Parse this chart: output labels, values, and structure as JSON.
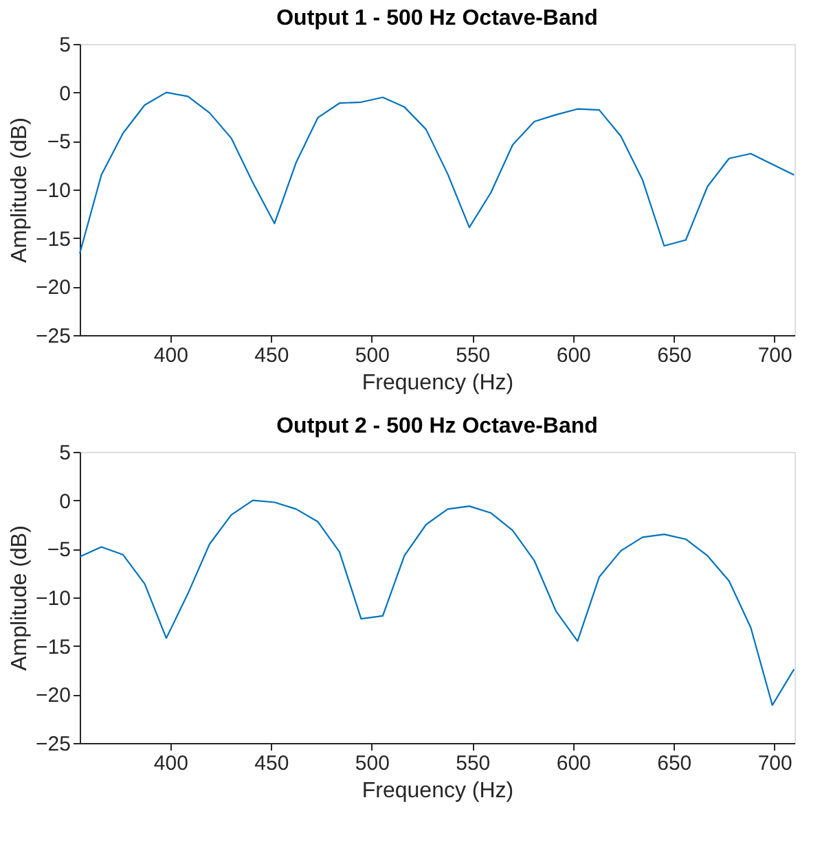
{
  "chart_data": [
    {
      "type": "line",
      "title": "Output 1 - 500 Hz Octave-Band",
      "xlabel": "Frequency (Hz)",
      "ylabel": "Amplitude (dB)",
      "xlim": [
        355,
        710
      ],
      "xticks": [
        400,
        450,
        500,
        550,
        600,
        650,
        700
      ],
      "ylim": [
        -25,
        5
      ],
      "yticks": [
        -25,
        -20,
        -15,
        -10,
        -5,
        0,
        5
      ],
      "x": [
        355,
        365.75,
        376.5,
        387.25,
        398,
        408.75,
        419.5,
        430.25,
        441,
        451.75,
        462.5,
        473.25,
        484,
        494.75,
        505.5,
        516.25,
        527,
        537.75,
        548.5,
        559.25,
        570,
        580.75,
        591.5,
        602.25,
        613,
        623.75,
        634.5,
        645.25,
        656,
        666.75,
        677.5,
        688.25,
        699,
        709.75
      ],
      "series": [
        {
          "color": "#0072bd",
          "values": [
            -16.6,
            -8.5,
            -4.2,
            -1.3,
            0,
            -0.4,
            -2.1,
            -4.7,
            -9.3,
            -13.5,
            -7.2,
            -2.6,
            -1.1,
            -1.0,
            -0.5,
            -1.5,
            -3.8,
            -8.4,
            -13.9,
            -10.3,
            -5.4,
            -3.0,
            -2.3,
            -1.7,
            -1.8,
            -4.5,
            -9.0,
            -15.8,
            -15.2,
            -9.7,
            -6.8,
            -6.3,
            -7.4,
            -8.5
          ]
        }
      ]
    },
    {
      "type": "line",
      "title": "Output 2 - 500 Hz Octave-Band",
      "xlabel": "Frequency (Hz)",
      "ylabel": "Amplitude (dB)",
      "xlim": [
        355,
        710
      ],
      "xticks": [
        400,
        450,
        500,
        550,
        600,
        650,
        700
      ],
      "ylim": [
        -25,
        5
      ],
      "yticks": [
        -25,
        -20,
        -15,
        -10,
        -5,
        0,
        5
      ],
      "x": [
        355,
        365.75,
        376.5,
        387.25,
        398,
        408.75,
        419.5,
        430.25,
        441,
        451.75,
        462.5,
        473.25,
        484,
        494.75,
        505.5,
        516.25,
        527,
        537.75,
        548.5,
        559.25,
        570,
        580.75,
        591.5,
        602.25,
        613,
        623.75,
        634.5,
        645.25,
        656,
        666.75,
        677.5,
        688.25,
        699,
        709.75
      ],
      "series": [
        {
          "color": "#0072bd",
          "values": [
            -5.8,
            -4.8,
            -5.6,
            -8.6,
            -14.2,
            -9.6,
            -4.5,
            -1.5,
            0,
            -0.2,
            -0.9,
            -2.2,
            -5.3,
            -12.2,
            -11.9,
            -5.7,
            -2.5,
            -0.9,
            -0.6,
            -1.3,
            -3.1,
            -6.2,
            -11.4,
            -14.5,
            -7.9,
            -5.2,
            -3.8,
            -3.5,
            -4.0,
            -5.7,
            -8.3,
            -13.1,
            -21.1,
            -17.4
          ]
        }
      ]
    }
  ]
}
